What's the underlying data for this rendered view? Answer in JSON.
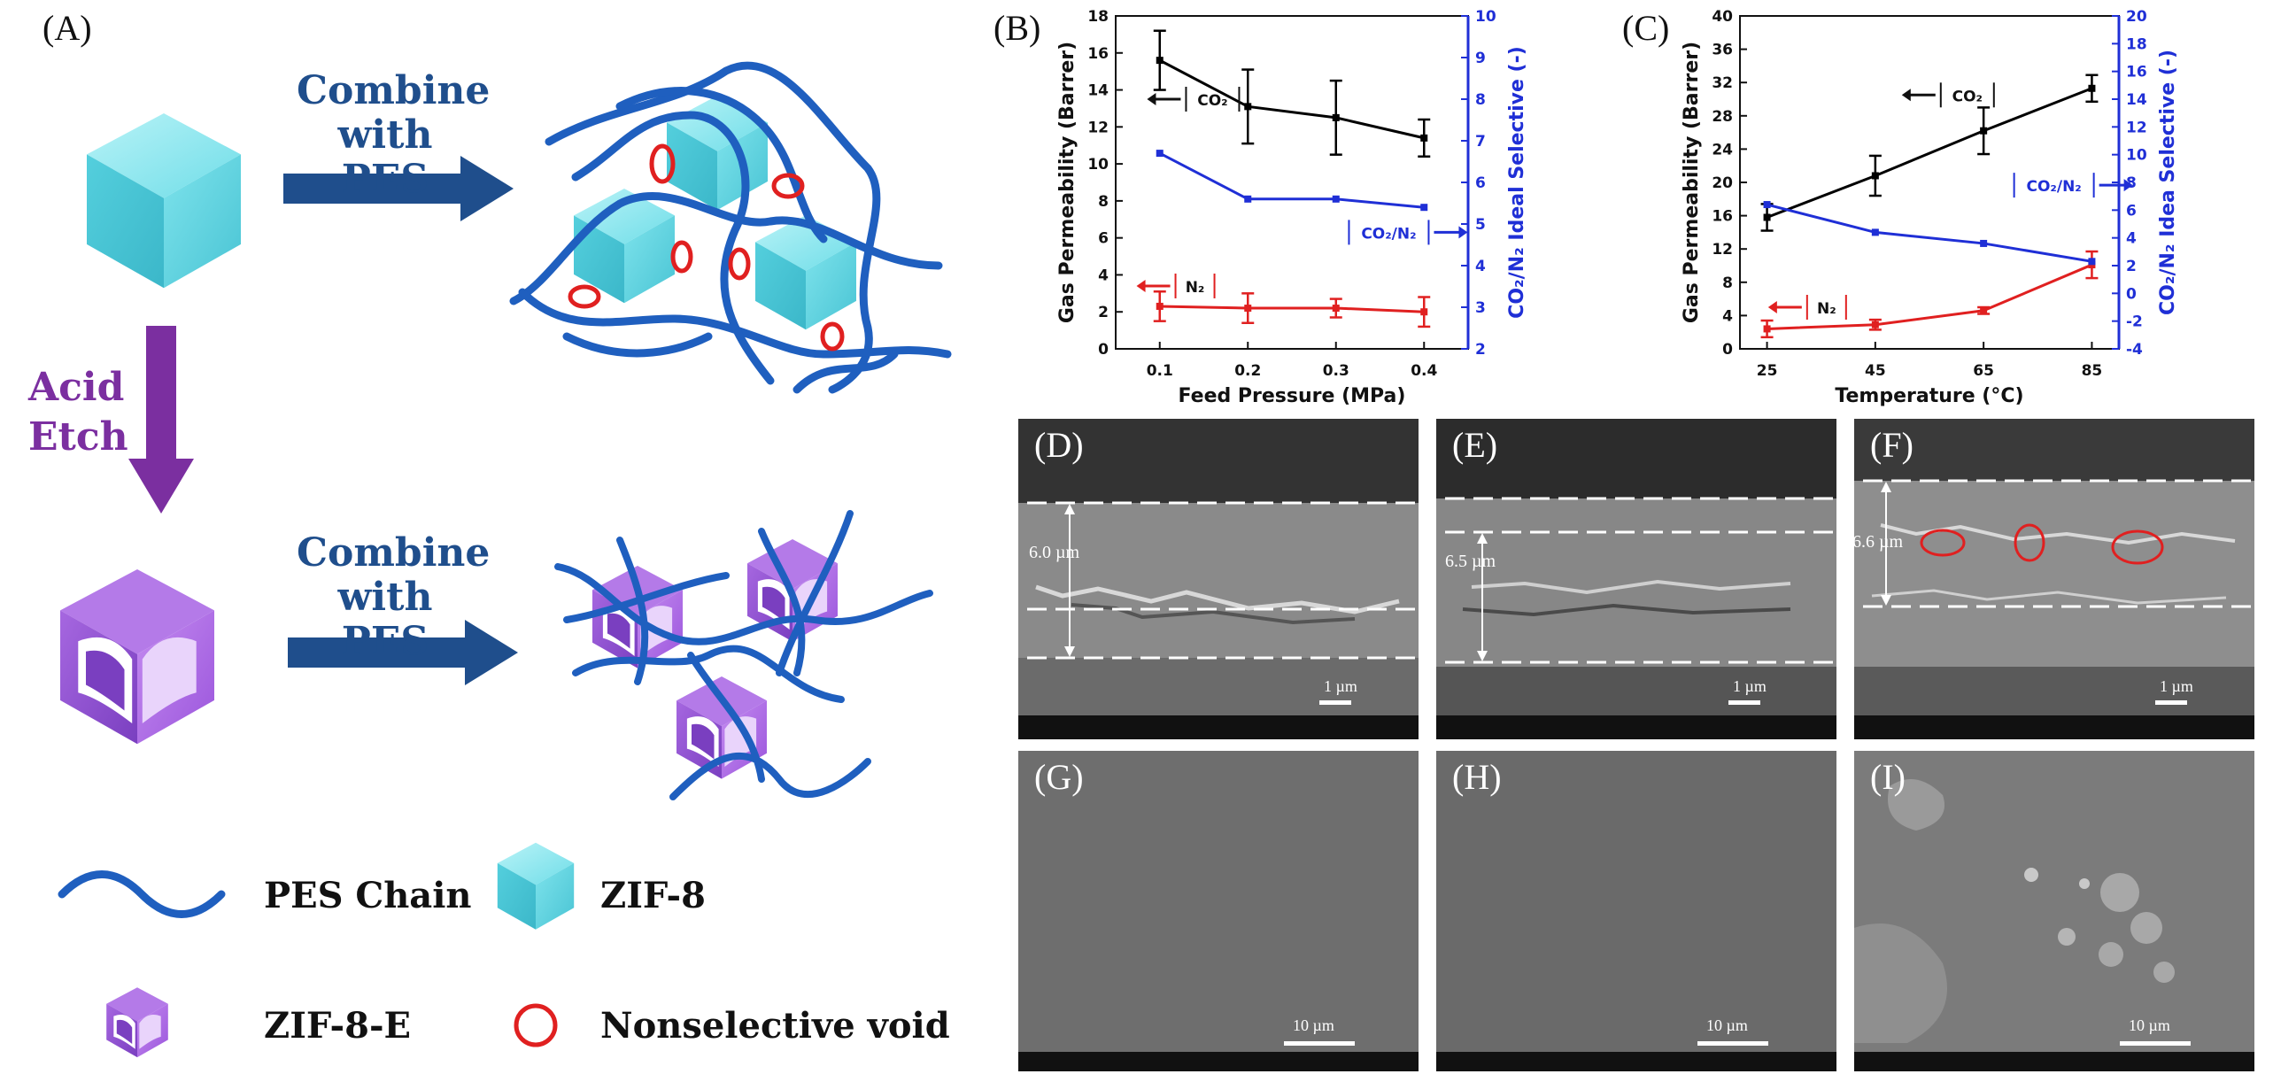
{
  "panels": {
    "A": "(A)",
    "B": "(B)",
    "C": "(C)",
    "D": "(D)",
    "E": "(E)",
    "F": "(F)",
    "G": "(G)",
    "H": "(H)",
    "I": "(I)"
  },
  "schematic": {
    "combine_top": [
      "Combine",
      "with PES"
    ],
    "combine_bottom": [
      "Combine",
      "with PES"
    ],
    "acid_etch": [
      "Acid",
      "Etch"
    ],
    "legend": {
      "pes_chain": "PES Chain",
      "zif8": "ZIF-8",
      "zif8e": "ZIF-8-E",
      "void": "Nonselective void"
    },
    "colors": {
      "chain": "#1f5fbf",
      "zif8": "#5fd3e0",
      "zif8e": "#9b4fd8",
      "arrow_blue": "#1f4e8c",
      "arrow_purple": "#7b2fa0",
      "void": "#e02020"
    }
  },
  "sem": {
    "D": {
      "thickness": "6.0 µm",
      "scale": "1 µm"
    },
    "E": {
      "thickness": "6.5 µm",
      "scale": "1 µm"
    },
    "F": {
      "thickness": "6.6 µm",
      "scale": "1 µm"
    },
    "G": {
      "scale": "10 µm"
    },
    "H": {
      "scale": "10 µm"
    },
    "I": {
      "scale": "10 µm"
    }
  },
  "chart_data": [
    {
      "type": "line",
      "panel": "B",
      "xlabel": "Feed Pressure (MPa)",
      "ylabel": "Gas Permeability (Barrer)",
      "y2label": "CO₂/N₂ Ideal Selective (-)",
      "x": [
        0.1,
        0.2,
        0.3,
        0.4
      ],
      "xticks": [
        "0.1",
        "0.2",
        "0.3",
        "0.4"
      ],
      "xlim": [
        0.05,
        0.45
      ],
      "ylim": [
        0,
        18
      ],
      "yticks": [
        0,
        2,
        4,
        6,
        8,
        10,
        12,
        14,
        16,
        18
      ],
      "y2lim": [
        2,
        10
      ],
      "y2ticks": [
        2,
        3,
        4,
        5,
        6,
        7,
        8,
        9,
        10
      ],
      "series": [
        {
          "name": "CO₂",
          "axis": "left",
          "color": "#000000",
          "values": [
            15.6,
            13.1,
            12.5,
            11.4
          ],
          "errors": [
            1.6,
            2.0,
            2.0,
            1.0
          ]
        },
        {
          "name": "N₂",
          "axis": "left",
          "color": "#e02020",
          "values": [
            2.3,
            2.2,
            2.2,
            2.0
          ],
          "errors": [
            0.8,
            0.8,
            0.5,
            0.8
          ]
        },
        {
          "name": "CO₂/N₂",
          "axis": "right",
          "color": "#1f2fd6",
          "values": [
            6.7,
            5.6,
            5.6,
            5.4
          ],
          "errors": [
            0,
            0,
            0,
            0
          ]
        }
      ],
      "annotations": {
        "co2": "CO₂",
        "n2": "N₂",
        "ratio": "CO₂/N₂"
      }
    },
    {
      "type": "line",
      "panel": "C",
      "xlabel": "Temperature (°C)",
      "ylabel": "Gas Permeability (Barrer)",
      "y2label": "CO₂/N₂ Idea Selective (-)",
      "x": [
        25,
        45,
        65,
        85
      ],
      "xticks": [
        "25",
        "45",
        "65",
        "85"
      ],
      "xlim": [
        20,
        90
      ],
      "ylim": [
        0,
        40
      ],
      "yticks": [
        0,
        4,
        8,
        12,
        16,
        20,
        24,
        28,
        32,
        36,
        40
      ],
      "y2lim": [
        -4,
        20
      ],
      "y2ticks": [
        -4,
        -2,
        0,
        2,
        4,
        6,
        8,
        10,
        12,
        14,
        16,
        18,
        20
      ],
      "series": [
        {
          "name": "CO₂",
          "axis": "left",
          "color": "#000000",
          "values": [
            15.8,
            20.8,
            26.2,
            31.3
          ],
          "errors": [
            1.6,
            2.4,
            2.8,
            1.6
          ]
        },
        {
          "name": "N₂",
          "axis": "left",
          "color": "#e02020",
          "values": [
            2.4,
            2.9,
            4.6,
            10.1
          ],
          "errors": [
            1.0,
            0.6,
            0.4,
            1.6
          ]
        },
        {
          "name": "CO₂/N₂",
          "axis": "right",
          "color": "#1f2fd6",
          "values": [
            6.4,
            4.4,
            3.6,
            2.3
          ],
          "errors": [
            0,
            0,
            0,
            0
          ]
        }
      ],
      "annotations": {
        "co2": "CO₂",
        "n2": "N₂",
        "ratio": "CO₂/N₂"
      }
    }
  ]
}
